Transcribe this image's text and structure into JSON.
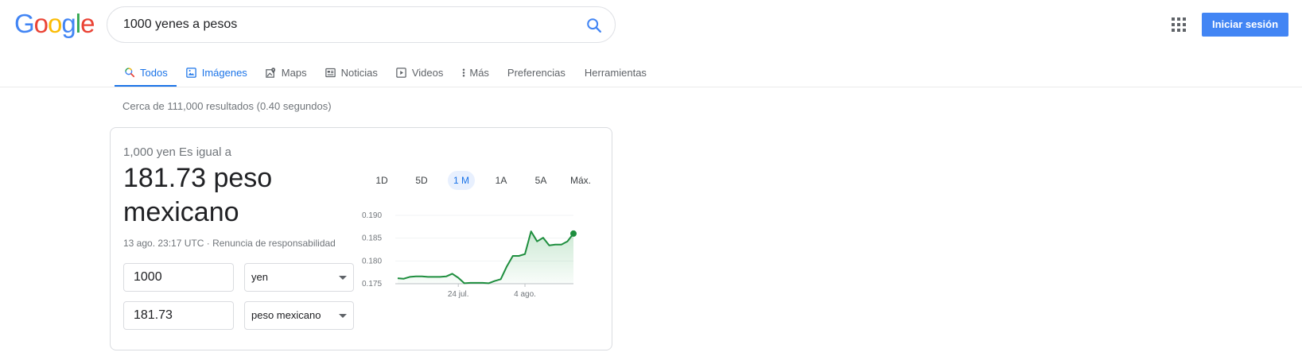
{
  "header": {
    "logo_letters": [
      {
        "ch": "G",
        "color": "#4285f4"
      },
      {
        "ch": "o",
        "color": "#ea4335"
      },
      {
        "ch": "o",
        "color": "#fbbc05"
      },
      {
        "ch": "g",
        "color": "#4285f4"
      },
      {
        "ch": "l",
        "color": "#34a853"
      },
      {
        "ch": "e",
        "color": "#ea4335"
      }
    ],
    "search_value": "1000 yenes a pesos",
    "signin_label": "Iniciar sesión"
  },
  "tabs": [
    {
      "label": "Todos",
      "icon": "search-icon",
      "active": true
    },
    {
      "label": "Imágenes",
      "icon": "image-icon",
      "active": false
    },
    {
      "label": "Maps",
      "icon": "map-icon",
      "active": false
    },
    {
      "label": "Noticias",
      "icon": "news-icon",
      "active": false
    },
    {
      "label": "Videos",
      "icon": "video-icon",
      "active": false
    },
    {
      "label": "Más",
      "icon": "more-vert-icon",
      "active": false
    },
    {
      "label": "Preferencias",
      "icon": "",
      "active": false
    },
    {
      "label": "Herramientas",
      "icon": "",
      "active": false
    }
  ],
  "stats": "Cerca de 111,000 resultados (0.40 segundos)",
  "converter": {
    "equals_label": "1,000 yen Es igual a",
    "result_line1": "181.73 peso",
    "result_line2": "mexicano",
    "timestamp": "13 ago. 23:17 UTC",
    "separator": " · ",
    "disclaimer": "Renuncia de responsabilidad",
    "from_amount": "1000",
    "from_currency": "yen",
    "to_amount": "181.73",
    "to_currency": "peso mexicano"
  },
  "ranges": [
    {
      "label": "1D",
      "active": false
    },
    {
      "label": "5D",
      "active": false
    },
    {
      "label": "1 M",
      "active": true
    },
    {
      "label": "1A",
      "active": false
    },
    {
      "label": "5A",
      "active": false
    },
    {
      "label": "Máx.",
      "active": false
    }
  ],
  "colors": {
    "accent": "#1a73e8",
    "signin": "#4285f4",
    "chart_line": "#1e8e3e"
  },
  "chart_data": {
    "type": "area",
    "y_ticks": [
      "0.190",
      "0.185",
      "0.180",
      "0.175"
    ],
    "ylim": [
      0.175,
      0.19
    ],
    "x_tick_labels": [
      {
        "label": "24 jul.",
        "index": 10
      },
      {
        "label": "4 ago.",
        "index": 21
      }
    ],
    "values": [
      0.1762,
      0.1761,
      0.1765,
      0.1766,
      0.1766,
      0.1765,
      0.1765,
      0.1765,
      0.1766,
      0.1772,
      0.1763,
      0.1751,
      0.1752,
      0.1752,
      0.1752,
      0.1751,
      0.1756,
      0.176,
      0.1788,
      0.1811,
      0.1811,
      0.1815,
      0.1865,
      0.1843,
      0.1851,
      0.1834,
      0.1836,
      0.1836,
      0.1843,
      0.186
    ],
    "grid": true
  }
}
